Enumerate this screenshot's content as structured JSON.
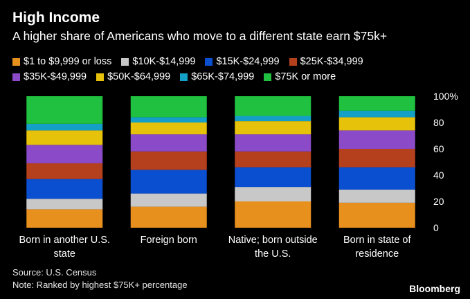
{
  "header": {
    "title": "High Income",
    "subtitle": "A higher share of Americans who move to a different state earn $75k+"
  },
  "footer": {
    "source": "Source: U.S. Census",
    "note": "Note: Ranked by highest $75K+ percentage",
    "brand": "Bloomberg"
  },
  "chart_data": {
    "type": "bar",
    "stacked": true,
    "title": "A higher share of Americans who move to a different state earn $75k+",
    "categories": [
      [
        "Born in another U.S.",
        "state"
      ],
      [
        "Foreign born"
      ],
      [
        "Native; born outside",
        "the U.S."
      ],
      [
        "Born in state of",
        "residence"
      ]
    ],
    "ylim": [
      0,
      100
    ],
    "yticks": [
      0,
      20,
      40,
      60,
      80,
      100
    ],
    "ytick_labels": [
      "0",
      "20",
      "40",
      "60",
      "80",
      "100%"
    ],
    "series": [
      {
        "name": "$1 to $9,999 or loss",
        "color": "#e8901e",
        "values": [
          14,
          16,
          20,
          19
        ]
      },
      {
        "name": "$10K-$14,999",
        "color": "#c8c8c8",
        "values": [
          8,
          10,
          11,
          10
        ]
      },
      {
        "name": "$15K-$24,999",
        "color": "#0b4fd1",
        "values": [
          15,
          18,
          15,
          17
        ]
      },
      {
        "name": "$25K-$34,999",
        "color": "#b5401d",
        "values": [
          12,
          14,
          12,
          14
        ]
      },
      {
        "name": "$35K-$49,999",
        "color": "#8b4bc8",
        "values": [
          14,
          13,
          13,
          14
        ]
      },
      {
        "name": "$50K-$64,999",
        "color": "#e6c20a",
        "values": [
          11,
          9,
          10,
          10
        ]
      },
      {
        "name": "$65K-$74,999",
        "color": "#149fc6",
        "values": [
          5,
          4,
          4,
          5
        ]
      },
      {
        "name": "$75K or more",
        "color": "#20c040",
        "values": [
          21,
          16,
          15,
          11
        ]
      }
    ]
  }
}
